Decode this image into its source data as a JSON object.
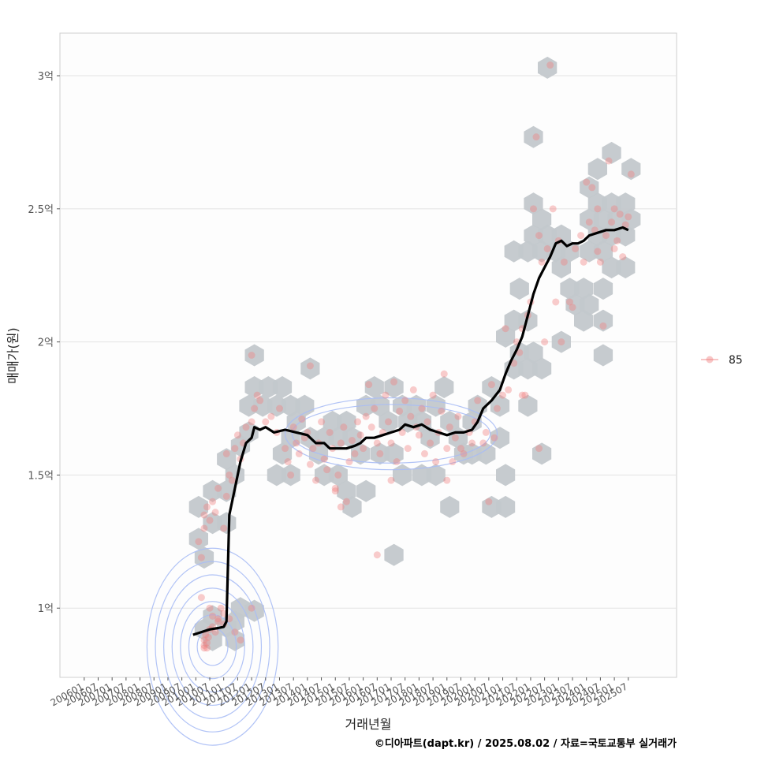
{
  "chart_data": {
    "type": "scatter",
    "xlabel": "거래년월",
    "ylabel": "매매가(원)",
    "caption": "©디아파트(dapt.kr) / 2025.08.02 / 자료=국토교통부 실거래가",
    "x_tick_labels": [
      "200601",
      "200607",
      "200701",
      "200707",
      "200801",
      "200807",
      "200901",
      "200907",
      "201001",
      "201007",
      "201101",
      "201107",
      "201201",
      "201207",
      "201301",
      "201307",
      "201401",
      "201407",
      "201501",
      "201507",
      "201601",
      "201607",
      "201701",
      "201707",
      "201801",
      "201807",
      "201901",
      "201907",
      "202001",
      "202007",
      "202101",
      "202107",
      "202201",
      "202207",
      "202301",
      "202307",
      "202401",
      "202407",
      "202501",
      "202507"
    ],
    "y_ticks": [
      {
        "value": 1.0,
        "label": "1억"
      },
      {
        "value": 1.5,
        "label": "1.5억"
      },
      {
        "value": 2.0,
        "label": "2억"
      },
      {
        "value": 2.5,
        "label": "2.5억"
      },
      {
        "value": 3.0,
        "label": "3억"
      }
    ],
    "ylim": [
      0.74,
      3.16
    ],
    "xlim": [
      2005.13,
      2027.23
    ],
    "legend": {
      "label": "85",
      "position": "right"
    },
    "colors": {
      "points": "#f08080",
      "hex": "#c3c8cc",
      "line": "#000000",
      "contour": "#a9bdf5",
      "grid": "#e3e3e3"
    },
    "trend_line": [
      [
        2009.9,
        0.9
      ],
      [
        2010.2,
        0.91
      ],
      [
        2010.5,
        0.92
      ],
      [
        2010.8,
        0.925
      ],
      [
        2011.0,
        0.93
      ],
      [
        2011.1,
        0.95
      ],
      [
        2011.2,
        1.35
      ],
      [
        2011.4,
        1.45
      ],
      [
        2011.6,
        1.55
      ],
      [
        2011.8,
        1.62
      ],
      [
        2012.0,
        1.64
      ],
      [
        2012.1,
        1.68
      ],
      [
        2012.3,
        1.67
      ],
      [
        2012.5,
        1.68
      ],
      [
        2012.8,
        1.66
      ],
      [
        2013.2,
        1.67
      ],
      [
        2013.6,
        1.66
      ],
      [
        2014.0,
        1.65
      ],
      [
        2014.3,
        1.62
      ],
      [
        2014.6,
        1.62
      ],
      [
        2014.8,
        1.6
      ],
      [
        2015.1,
        1.6
      ],
      [
        2015.4,
        1.6
      ],
      [
        2015.7,
        1.61
      ],
      [
        2015.9,
        1.62
      ],
      [
        2016.1,
        1.64
      ],
      [
        2016.4,
        1.64
      ],
      [
        2016.7,
        1.65
      ],
      [
        2017.0,
        1.66
      ],
      [
        2017.3,
        1.67
      ],
      [
        2017.5,
        1.69
      ],
      [
        2017.8,
        1.68
      ],
      [
        2018.1,
        1.69
      ],
      [
        2018.4,
        1.67
      ],
      [
        2018.7,
        1.66
      ],
      [
        2019.0,
        1.65
      ],
      [
        2019.3,
        1.66
      ],
      [
        2019.6,
        1.66
      ],
      [
        2019.9,
        1.67
      ],
      [
        2020.1,
        1.7
      ],
      [
        2020.3,
        1.75
      ],
      [
        2020.6,
        1.78
      ],
      [
        2020.9,
        1.82
      ],
      [
        2021.1,
        1.88
      ],
      [
        2021.3,
        1.93
      ],
      [
        2021.5,
        1.97
      ],
      [
        2021.7,
        2.02
      ],
      [
        2021.9,
        2.1
      ],
      [
        2022.1,
        2.18
      ],
      [
        2022.3,
        2.24
      ],
      [
        2022.5,
        2.28
      ],
      [
        2022.7,
        2.32
      ],
      [
        2022.9,
        2.37
      ],
      [
        2023.1,
        2.38
      ],
      [
        2023.3,
        2.36
      ],
      [
        2023.5,
        2.37
      ],
      [
        2023.7,
        2.37
      ],
      [
        2023.9,
        2.38
      ],
      [
        2024.1,
        2.4
      ],
      [
        2024.4,
        2.41
      ],
      [
        2024.7,
        2.42
      ],
      [
        2025.0,
        2.42
      ],
      [
        2025.3,
        2.43
      ],
      [
        2025.5,
        2.42
      ]
    ],
    "hex_centers": [
      [
        2010.3,
        0.92
      ],
      [
        2010.6,
        0.88
      ],
      [
        2010.6,
        0.97
      ],
      [
        2011.1,
        0.93
      ],
      [
        2011.4,
        0.88
      ],
      [
        2011.4,
        0.95
      ],
      [
        2011.6,
        1.0
      ],
      [
        2012.1,
        0.99
      ],
      [
        2010.1,
        1.26
      ],
      [
        2010.3,
        1.19
      ],
      [
        2010.1,
        1.38
      ],
      [
        2010.6,
        1.32
      ],
      [
        2010.6,
        1.44
      ],
      [
        2011.1,
        1.32
      ],
      [
        2011.1,
        1.44
      ],
      [
        2011.4,
        1.5
      ],
      [
        2011.1,
        1.56
      ],
      [
        2011.6,
        1.61
      ],
      [
        2011.9,
        1.66
      ],
      [
        2011.9,
        1.76
      ],
      [
        2012.1,
        1.83
      ],
      [
        2012.1,
        1.95
      ],
      [
        2012.4,
        1.76
      ],
      [
        2012.6,
        1.83
      ],
      [
        2012.9,
        1.76
      ],
      [
        2013.1,
        1.83
      ],
      [
        2013.4,
        1.76
      ],
      [
        2012.9,
        1.5
      ],
      [
        2013.4,
        1.64
      ],
      [
        2013.1,
        1.58
      ],
      [
        2013.6,
        1.7
      ],
      [
        2013.9,
        1.76
      ],
      [
        2014.1,
        1.9
      ],
      [
        2014.1,
        1.64
      ],
      [
        2014.4,
        1.58
      ],
      [
        2014.6,
        1.64
      ],
      [
        2014.9,
        1.7
      ],
      [
        2015.1,
        1.64
      ],
      [
        2015.4,
        1.7
      ],
      [
        2015.6,
        1.64
      ],
      [
        2015.9,
        1.58
      ],
      [
        2015.1,
        1.5
      ],
      [
        2015.4,
        1.44
      ],
      [
        2015.6,
        1.38
      ],
      [
        2014.6,
        1.5
      ],
      [
        2013.4,
        1.5
      ],
      [
        2016.1,
        1.76
      ],
      [
        2016.4,
        1.83
      ],
      [
        2016.6,
        1.76
      ],
      [
        2016.9,
        1.7
      ],
      [
        2017.1,
        1.83
      ],
      [
        2017.4,
        1.76
      ],
      [
        2017.6,
        1.7
      ],
      [
        2017.9,
        1.76
      ],
      [
        2018.1,
        1.7
      ],
      [
        2018.4,
        1.64
      ],
      [
        2018.6,
        1.76
      ],
      [
        2018.9,
        1.83
      ],
      [
        2019.1,
        1.7
      ],
      [
        2019.4,
        1.64
      ],
      [
        2019.6,
        1.58
      ],
      [
        2019.9,
        1.58
      ],
      [
        2017.1,
        1.58
      ],
      [
        2017.4,
        1.5
      ],
      [
        2016.6,
        1.58
      ],
      [
        2016.1,
        1.44
      ],
      [
        2018.1,
        1.5
      ],
      [
        2018.6,
        1.5
      ],
      [
        2019.1,
        1.38
      ],
      [
        2019.9,
        1.7
      ],
      [
        2020.1,
        1.76
      ],
      [
        2020.6,
        1.83
      ],
      [
        2020.9,
        1.76
      ],
      [
        2020.4,
        1.58
      ],
      [
        2020.6,
        1.38
      ],
      [
        2021.1,
        1.5
      ],
      [
        2020.9,
        1.64
      ],
      [
        2017.1,
        1.2
      ],
      [
        2021.1,
        2.02
      ],
      [
        2021.4,
        2.08
      ],
      [
        2021.6,
        1.96
      ],
      [
        2021.9,
        2.08
      ],
      [
        2021.9,
        1.76
      ],
      [
        2021.4,
        1.9
      ],
      [
        2021.9,
        1.9
      ],
      [
        2022.1,
        1.96
      ],
      [
        2022.4,
        1.9
      ],
      [
        2021.6,
        2.2
      ],
      [
        2021.4,
        2.34
      ],
      [
        2021.9,
        2.34
      ],
      [
        2022.1,
        2.4
      ],
      [
        2022.4,
        2.46
      ],
      [
        2022.1,
        2.52
      ],
      [
        2022.4,
        2.34
      ],
      [
        2022.6,
        2.4
      ],
      [
        2022.9,
        2.34
      ],
      [
        2023.1,
        2.4
      ],
      [
        2023.4,
        2.34
      ],
      [
        2023.1,
        2.28
      ],
      [
        2023.4,
        2.2
      ],
      [
        2023.6,
        2.14
      ],
      [
        2023.9,
        2.2
      ],
      [
        2023.9,
        2.08
      ],
      [
        2024.1,
        2.14
      ],
      [
        2024.1,
        2.34
      ],
      [
        2024.4,
        2.4
      ],
      [
        2024.4,
        2.52
      ],
      [
        2024.1,
        2.46
      ],
      [
        2024.1,
        2.58
      ],
      [
        2024.4,
        2.65
      ],
      [
        2024.6,
        2.46
      ],
      [
        2024.9,
        2.52
      ],
      [
        2025.1,
        2.46
      ],
      [
        2025.4,
        2.52
      ],
      [
        2025.4,
        2.4
      ],
      [
        2025.6,
        2.46
      ],
      [
        2024.9,
        2.4
      ],
      [
        2024.9,
        2.28
      ],
      [
        2025.4,
        2.28
      ],
      [
        2024.6,
        2.34
      ],
      [
        2024.6,
        2.2
      ],
      [
        2024.9,
        2.71
      ],
      [
        2025.6,
        2.65
      ],
      [
        2024.6,
        2.08
      ],
      [
        2024.6,
        1.95
      ],
      [
        2022.1,
        2.77
      ],
      [
        2022.6,
        3.03
      ],
      [
        2023.1,
        2.0
      ],
      [
        2022.4,
        1.58
      ],
      [
        2021.1,
        1.38
      ]
    ],
    "points": [
      [
        2010.3,
        0.86
      ],
      [
        2010.3,
        0.88
      ],
      [
        2010.35,
        0.9
      ],
      [
        2010.4,
        0.87
      ],
      [
        2010.45,
        0.89
      ],
      [
        2010.5,
        0.92
      ],
      [
        2010.3,
        0.85
      ],
      [
        2010.4,
        0.85
      ],
      [
        2010.6,
        0.93
      ],
      [
        2010.7,
        0.91
      ],
      [
        2010.8,
        0.95
      ],
      [
        2010.9,
        1.0
      ],
      [
        2011.0,
        0.98
      ],
      [
        2011.2,
        0.96
      ],
      [
        2011.4,
        0.91
      ],
      [
        2011.6,
        0.88
      ],
      [
        2012.0,
        1.0
      ],
      [
        2010.2,
        1.04
      ],
      [
        2010.5,
        1.0
      ],
      [
        2010.6,
        0.97
      ],
      [
        2010.8,
        0.96
      ],
      [
        2011.0,
        0.94
      ],
      [
        2010.1,
        1.25
      ],
      [
        2010.2,
        1.19
      ],
      [
        2010.3,
        1.3
      ],
      [
        2010.3,
        1.35
      ],
      [
        2010.4,
        1.38
      ],
      [
        2010.5,
        1.33
      ],
      [
        2010.6,
        1.4
      ],
      [
        2010.7,
        1.36
      ],
      [
        2010.8,
        1.45
      ],
      [
        2011.0,
        1.3
      ],
      [
        2011.1,
        1.42
      ],
      [
        2011.2,
        1.5
      ],
      [
        2011.3,
        1.48
      ],
      [
        2011.1,
        1.58
      ],
      [
        2011.4,
        1.6
      ],
      [
        2011.5,
        1.65
      ],
      [
        2011.6,
        1.56
      ],
      [
        2011.7,
        1.62
      ],
      [
        2011.8,
        1.68
      ],
      [
        2012.0,
        1.7
      ],
      [
        2012.1,
        1.75
      ],
      [
        2012.2,
        1.8
      ],
      [
        2012.0,
        1.95
      ],
      [
        2012.3,
        1.78
      ],
      [
        2012.5,
        1.7
      ],
      [
        2012.7,
        1.72
      ],
      [
        2012.9,
        1.66
      ],
      [
        2013.0,
        1.75
      ],
      [
        2013.2,
        1.6
      ],
      [
        2013.3,
        1.55
      ],
      [
        2013.4,
        1.5
      ],
      [
        2013.5,
        1.68
      ],
      [
        2013.6,
        1.62
      ],
      [
        2013.7,
        1.58
      ],
      [
        2013.8,
        1.71
      ],
      [
        2013.9,
        1.64
      ],
      [
        2014.0,
        1.66
      ],
      [
        2014.1,
        1.54
      ],
      [
        2014.2,
        1.6
      ],
      [
        2014.1,
        1.91
      ],
      [
        2014.3,
        1.48
      ],
      [
        2014.4,
        1.62
      ],
      [
        2014.5,
        1.7
      ],
      [
        2014.6,
        1.56
      ],
      [
        2014.7,
        1.52
      ],
      [
        2014.8,
        1.66
      ],
      [
        2014.9,
        1.6
      ],
      [
        2015.0,
        1.45
      ],
      [
        2015.1,
        1.5
      ],
      [
        2015.2,
        1.62
      ],
      [
        2015.3,
        1.68
      ],
      [
        2015.4,
        1.4
      ],
      [
        2015.5,
        1.55
      ],
      [
        2015.6,
        1.63
      ],
      [
        2015.7,
        1.58
      ],
      [
        2015.8,
        1.7
      ],
      [
        2015.9,
        1.65
      ],
      [
        2016.0,
        1.6
      ],
      [
        2016.1,
        1.72
      ],
      [
        2016.2,
        1.84
      ],
      [
        2016.3,
        1.68
      ],
      [
        2016.4,
        1.75
      ],
      [
        2016.5,
        1.62
      ],
      [
        2016.6,
        1.58
      ],
      [
        2016.7,
        1.66
      ],
      [
        2016.8,
        1.8
      ],
      [
        2016.9,
        1.7
      ],
      [
        2017.0,
        1.62
      ],
      [
        2017.1,
        1.85
      ],
      [
        2017.2,
        1.55
      ],
      [
        2017.3,
        1.74
      ],
      [
        2017.4,
        1.66
      ],
      [
        2017.5,
        1.78
      ],
      [
        2017.6,
        1.6
      ],
      [
        2017.7,
        1.72
      ],
      [
        2017.8,
        1.82
      ],
      [
        2017.9,
        1.68
      ],
      [
        2018.0,
        1.65
      ],
      [
        2018.1,
        1.75
      ],
      [
        2018.2,
        1.58
      ],
      [
        2018.3,
        1.7
      ],
      [
        2018.4,
        1.62
      ],
      [
        2018.5,
        1.8
      ],
      [
        2018.6,
        1.55
      ],
      [
        2018.7,
        1.66
      ],
      [
        2018.8,
        1.74
      ],
      [
        2018.9,
        1.88
      ],
      [
        2019.0,
        1.6
      ],
      [
        2019.1,
        1.68
      ],
      [
        2019.2,
        1.55
      ],
      [
        2019.3,
        1.64
      ],
      [
        2019.4,
        1.72
      ],
      [
        2019.5,
        1.6
      ],
      [
        2019.6,
        1.58
      ],
      [
        2019.8,
        1.66
      ],
      [
        2019.9,
        1.62
      ],
      [
        2020.0,
        1.7
      ],
      [
        2020.1,
        1.78
      ],
      [
        2020.3,
        1.62
      ],
      [
        2020.4,
        1.66
      ],
      [
        2020.6,
        1.84
      ],
      [
        2020.5,
        1.4
      ],
      [
        2020.7,
        1.64
      ],
      [
        2020.8,
        1.75
      ],
      [
        2021.0,
        1.8
      ],
      [
        2021.1,
        2.05
      ],
      [
        2021.2,
        1.82
      ],
      [
        2021.4,
        1.92
      ],
      [
        2021.5,
        2.0
      ],
      [
        2021.6,
        1.96
      ],
      [
        2021.7,
        2.05
      ],
      [
        2021.8,
        1.8
      ],
      [
        2021.9,
        2.1
      ],
      [
        2022.0,
        2.15
      ],
      [
        2022.1,
        2.5
      ],
      [
        2022.2,
        2.77
      ],
      [
        2022.3,
        2.4
      ],
      [
        2022.4,
        2.3
      ],
      [
        2022.5,
        2.0
      ],
      [
        2022.3,
        1.6
      ],
      [
        2022.6,
        2.35
      ],
      [
        2022.7,
        3.04
      ],
      [
        2022.8,
        2.5
      ],
      [
        2023.0,
        2.38
      ],
      [
        2023.1,
        2.0
      ],
      [
        2023.2,
        2.3
      ],
      [
        2023.4,
        2.15
      ],
      [
        2023.6,
        2.35
      ],
      [
        2023.8,
        2.4
      ],
      [
        2023.9,
        2.3
      ],
      [
        2024.0,
        2.6
      ],
      [
        2024.1,
        2.45
      ],
      [
        2024.2,
        2.58
      ],
      [
        2024.3,
        2.42
      ],
      [
        2024.4,
        2.5
      ],
      [
        2024.5,
        2.3
      ],
      [
        2024.6,
        2.06
      ],
      [
        2024.7,
        2.4
      ],
      [
        2024.8,
        2.68
      ],
      [
        2024.9,
        2.45
      ],
      [
        2025.0,
        2.35
      ],
      [
        2025.1,
        2.38
      ],
      [
        2025.2,
        2.48
      ],
      [
        2025.3,
        2.32
      ],
      [
        2025.4,
        2.44
      ],
      [
        2025.5,
        2.47
      ],
      [
        2025.6,
        2.63
      ],
      [
        2025.0,
        2.5
      ],
      [
        2024.4,
        2.34
      ],
      [
        2023.5,
        2.13
      ],
      [
        2022.9,
        2.15
      ],
      [
        2021.7,
        1.8
      ],
      [
        2016.5,
        1.2
      ],
      [
        2017.0,
        1.48
      ],
      [
        2015.2,
        1.38
      ],
      [
        2015.0,
        1.44
      ],
      [
        2019.0,
        1.48
      ]
    ],
    "contours": [
      {
        "cx": 2010.6,
        "cy": 0.855,
        "rxs": [
          0.55,
          0.85,
          1.15,
          1.45,
          1.75,
          2.05,
          2.35
        ],
        "rys": [
          0.07,
          0.12,
          0.17,
          0.22,
          0.27,
          0.32,
          0.37
        ]
      },
      {
        "cx": 2017.0,
        "cy": 1.655,
        "rxs": [
          3.55,
          3.8
        ],
        "rys": [
          0.11,
          0.135
        ]
      }
    ]
  }
}
